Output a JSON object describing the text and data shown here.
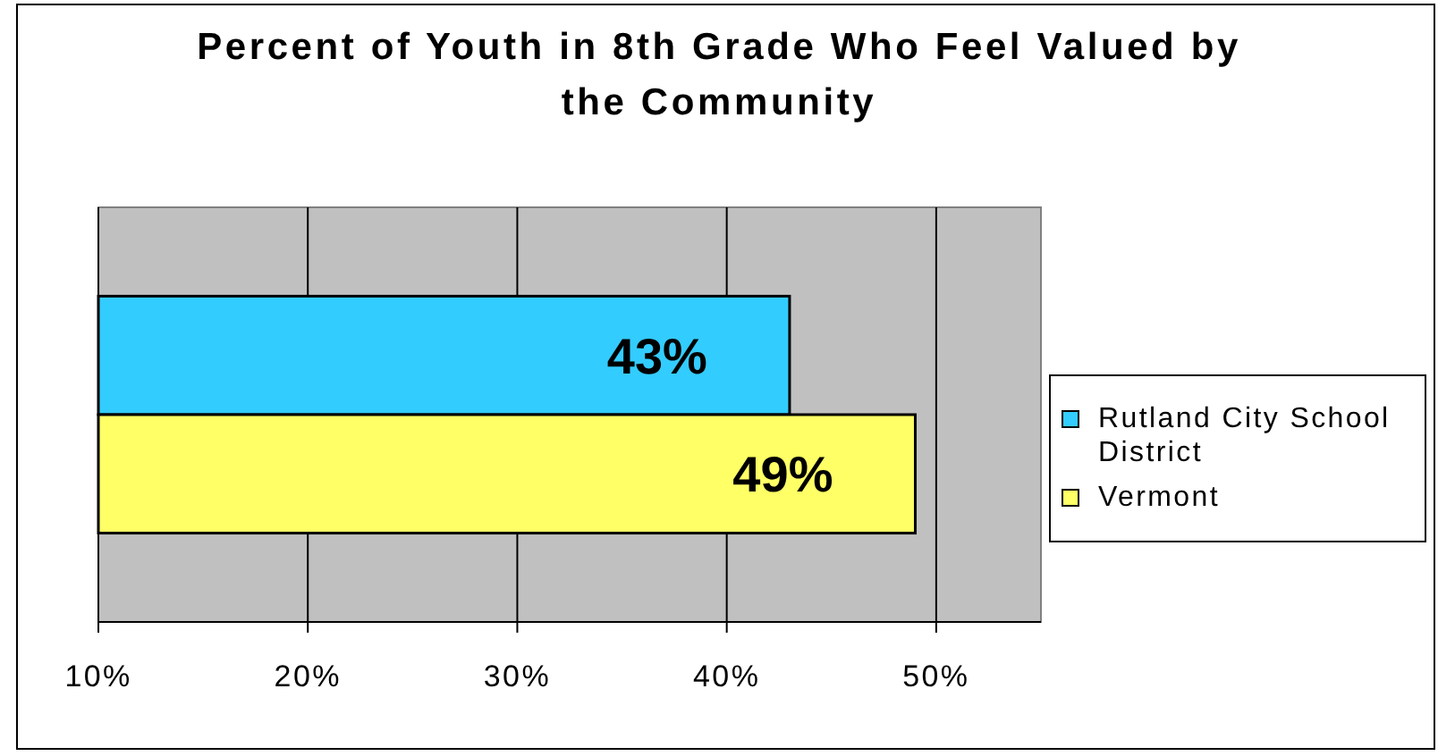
{
  "chart_data": {
    "type": "bar",
    "orientation": "horizontal",
    "title": "Percent of Youth in 8th Grade Who Feel Valued by the Community",
    "categories": [
      null
    ],
    "series": [
      {
        "name": "Rutland City School District",
        "color": "#33ccff",
        "values": [
          43
        ],
        "value_labels": [
          "43%"
        ]
      },
      {
        "name": "Vermont",
        "color": "#ffff66",
        "values": [
          49
        ],
        "value_labels": [
          "49%"
        ]
      }
    ],
    "xlim": [
      10,
      55
    ],
    "xticks": [
      {
        "value": 10,
        "label": "10%"
      },
      {
        "value": 20,
        "label": "20%"
      },
      {
        "value": 30,
        "label": "30%"
      },
      {
        "value": 40,
        "label": "40%"
      },
      {
        "value": 50,
        "label": "50%"
      }
    ],
    "grid": "x",
    "legend": "right"
  }
}
